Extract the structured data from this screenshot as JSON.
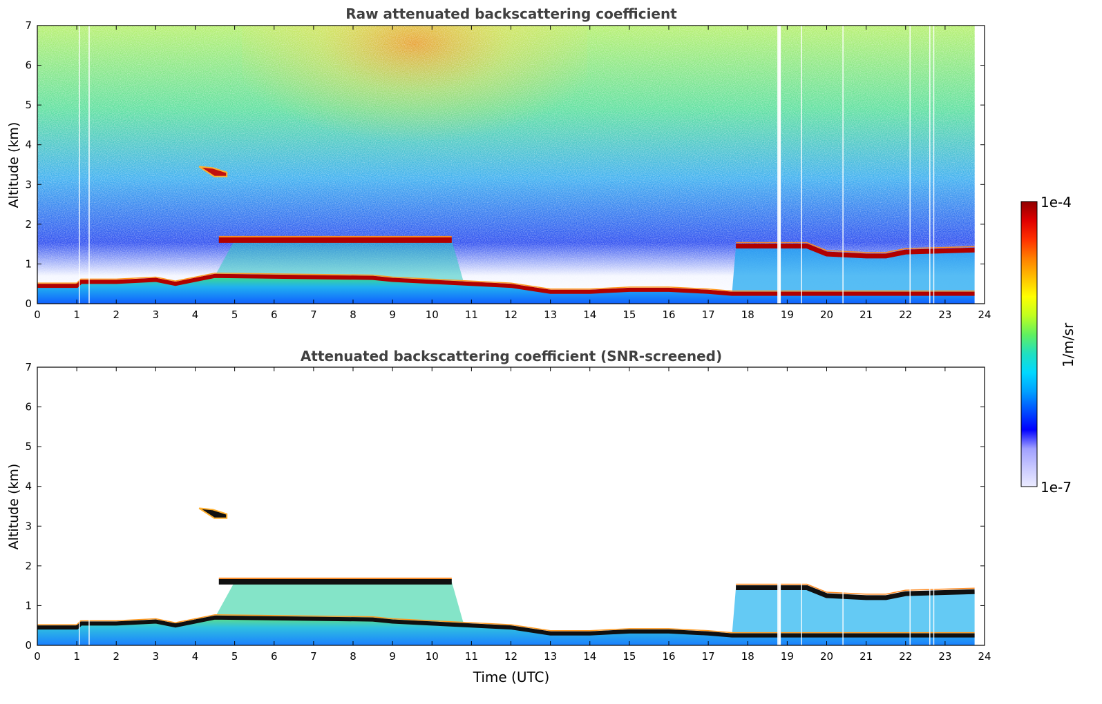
{
  "chart_data": [
    {
      "type": "heatmap",
      "title": "Raw attenuated backscattering coefficient",
      "xlabel": "",
      "ylabel": "Altitude (km)",
      "xlim": [
        0,
        24
      ],
      "ylim": [
        0,
        7
      ],
      "x_ticks": [
        "0",
        "1",
        "2",
        "3",
        "4",
        "5",
        "6",
        "7",
        "8",
        "9",
        "10",
        "11",
        "12",
        "13",
        "14",
        "15",
        "16",
        "17",
        "18",
        "19",
        "20",
        "21",
        "22",
        "23",
        "24"
      ],
      "y_ticks": [
        "0",
        "1",
        "2",
        "3",
        "4",
        "5",
        "6",
        "7"
      ],
      "data_end_time": 23.75,
      "features": {
        "boundary_layer_top": [
          [
            0,
            0.45
          ],
          [
            1,
            0.45
          ],
          [
            1.1,
            0.55
          ],
          [
            2,
            0.55
          ],
          [
            3,
            0.6
          ],
          [
            3.5,
            0.5
          ],
          [
            4,
            0.6
          ],
          [
            4.5,
            0.7
          ],
          [
            8.5,
            0.65
          ],
          [
            9,
            0.6
          ],
          [
            10,
            0.55
          ],
          [
            11,
            0.5
          ],
          [
            12,
            0.45
          ],
          [
            13,
            0.3
          ],
          [
            14,
            0.3
          ],
          [
            15,
            0.35
          ],
          [
            16,
            0.35
          ],
          [
            17,
            0.3
          ],
          [
            17.6,
            0.25
          ],
          [
            18,
            0.25
          ],
          [
            23.75,
            0.25
          ]
        ],
        "cloud_layer_1_6km": {
          "start": 4.6,
          "end": 10.5,
          "altitude": 1.6
        },
        "cloud_layer_1_4km": [
          [
            17.7,
            1.45
          ],
          [
            19.5,
            1.45
          ],
          [
            20,
            1.25
          ],
          [
            21,
            1.2
          ],
          [
            21.5,
            1.2
          ],
          [
            22,
            1.3
          ],
          [
            23.75,
            1.35
          ]
        ],
        "isolated_cloud": {
          "start": 4.1,
          "end": 4.8,
          "altitude_top": 3.45,
          "altitude_bottom": 3.2
        }
      }
    },
    {
      "type": "heatmap",
      "title": "Attenuated backscattering coefficient (SNR-screened)",
      "xlabel": "Time (UTC)",
      "ylabel": "Altitude (km)",
      "xlim": [
        0,
        24
      ],
      "ylim": [
        0,
        7
      ],
      "x_ticks": [
        "0",
        "1",
        "2",
        "3",
        "4",
        "5",
        "6",
        "7",
        "8",
        "9",
        "10",
        "11",
        "12",
        "13",
        "14",
        "15",
        "16",
        "17",
        "18",
        "19",
        "20",
        "21",
        "22",
        "23",
        "24"
      ],
      "y_ticks": [
        "0",
        "1",
        "2",
        "3",
        "4",
        "5",
        "6",
        "7"
      ],
      "data_end_time": 23.75
    }
  ],
  "colorbar": {
    "label": "1/m/sr",
    "max_label": "1e-4",
    "min_label": "1e-7",
    "colors": [
      "#ebebff",
      "#c8c8ff",
      "#a0a0ff",
      "#0000ff",
      "#0050ff",
      "#00a0ff",
      "#00d8ff",
      "#20e0c0",
      "#60f060",
      "#c0ff20",
      "#ffff00",
      "#ffc000",
      "#ff8000",
      "#ff3000",
      "#e00000",
      "#900000"
    ]
  }
}
